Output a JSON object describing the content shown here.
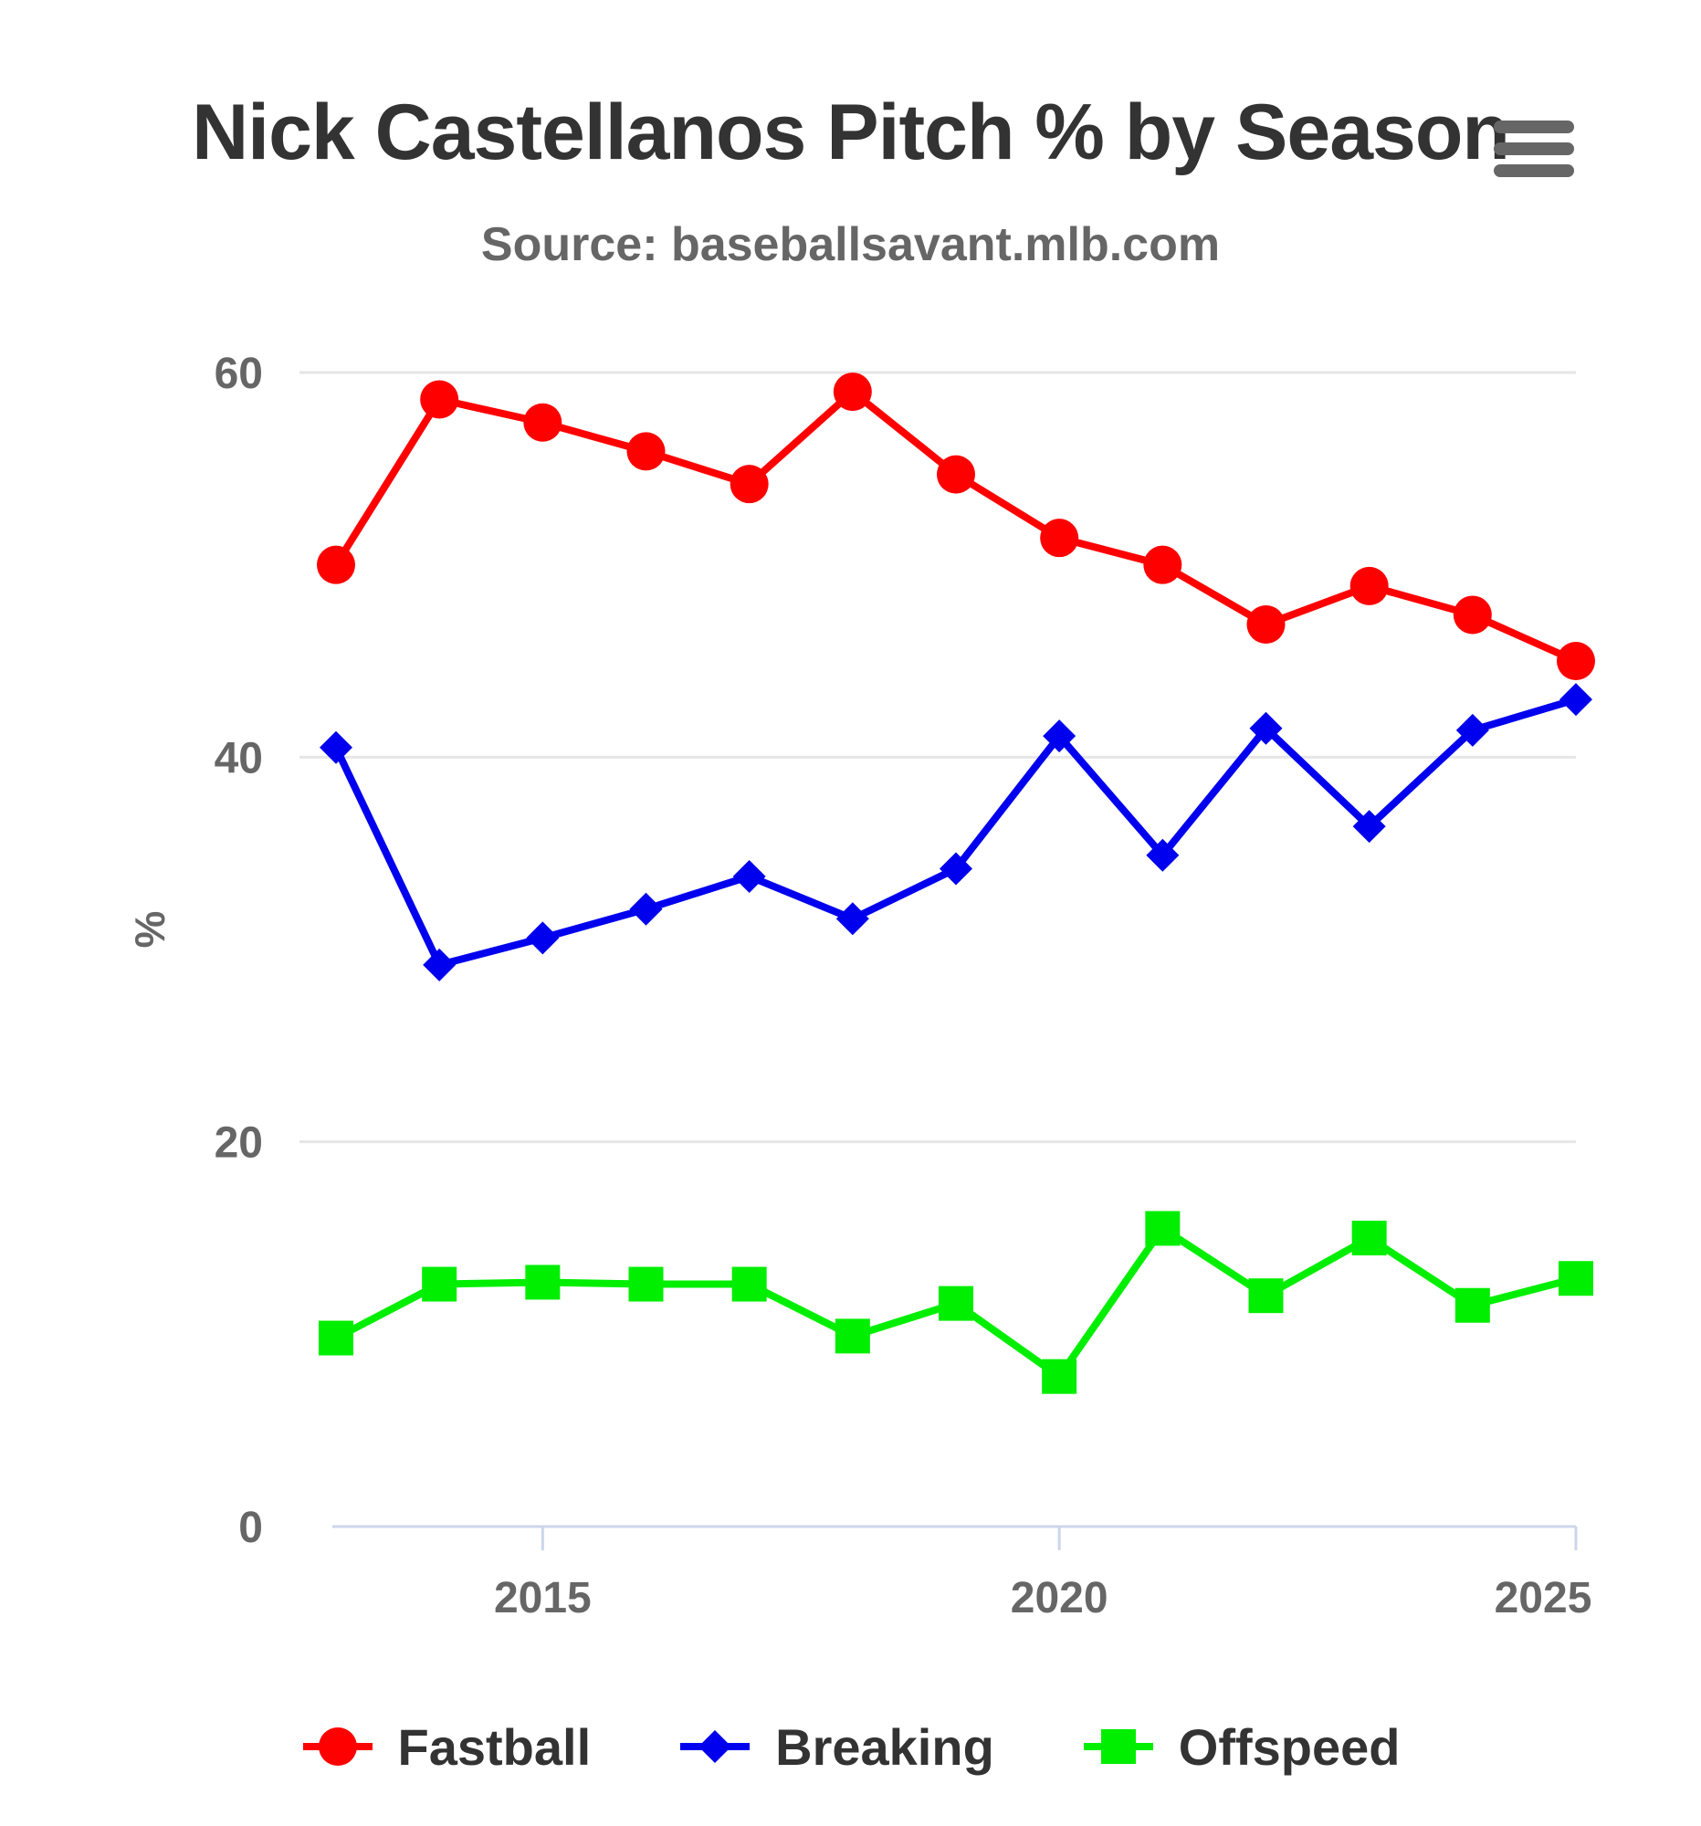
{
  "chart_data": {
    "type": "line",
    "title": "Nick Castellanos Pitch % by Season",
    "subtitle": "Source: baseballsavant.mlb.com",
    "ylabel": "%",
    "xlabel": "",
    "ylim": [
      0,
      60
    ],
    "xlim": [
      2013,
      2025
    ],
    "yticks": [
      0,
      20,
      40,
      60
    ],
    "xticks": [
      2015,
      2020,
      2025
    ],
    "grid": true,
    "legend_position": "bottom",
    "x": [
      2013,
      2014,
      2015,
      2016,
      2017,
      2018,
      2019,
      2020,
      2021,
      2022,
      2023,
      2024,
      2025
    ],
    "series": [
      {
        "name": "Fastball",
        "color": "#ff0000",
        "marker": "circle",
        "values": [
          50.0,
          58.6,
          57.4,
          55.9,
          54.2,
          59.0,
          54.7,
          51.4,
          50.0,
          46.9,
          48.9,
          47.4,
          45.0
        ]
      },
      {
        "name": "Breaking",
        "color": "#0000ee",
        "marker": "diamond",
        "values": [
          40.5,
          29.2,
          30.6,
          32.1,
          33.8,
          31.6,
          34.2,
          41.1,
          34.9,
          41.5,
          36.4,
          41.4,
          43.0
        ]
      },
      {
        "name": "Offspeed",
        "color": "#00ee00",
        "marker": "square",
        "values": [
          9.8,
          12.6,
          12.7,
          12.6,
          12.6,
          9.9,
          11.6,
          7.8,
          15.5,
          12.0,
          15.0,
          11.5,
          12.9
        ]
      }
    ]
  },
  "menu": {
    "icon": "hamburger-menu-icon"
  }
}
